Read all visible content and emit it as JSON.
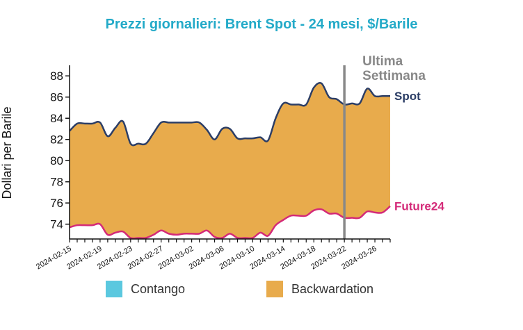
{
  "chart_data": {
    "type": "area",
    "title": "Prezzi giornalieri: Brent Spot - 24 mesi, $/Barile",
    "ylabel": "Dollari per Barile",
    "xlabel": "",
    "ylim": [
      72.6,
      89
    ],
    "yticks": [
      74,
      76,
      78,
      80,
      82,
      84,
      86,
      88
    ],
    "xtick_labels": [
      "2024-02-15",
      "2024-02-19",
      "2024-02-23",
      "2024-02-27",
      "2024-03-02",
      "2024-03-06",
      "2024-03-10",
      "2024-03-14",
      "2024-03-18",
      "2024-03-22",
      "2024-03-26"
    ],
    "x": [
      "2024-02-15",
      "2024-02-16",
      "2024-02-17",
      "2024-02-18",
      "2024-02-19",
      "2024-02-20",
      "2024-02-21",
      "2024-02-22",
      "2024-02-23",
      "2024-02-24",
      "2024-02-25",
      "2024-02-26",
      "2024-02-27",
      "2024-02-28",
      "2024-02-29",
      "2024-03-01",
      "2024-03-02",
      "2024-03-03",
      "2024-03-04",
      "2024-03-05",
      "2024-03-06",
      "2024-03-07",
      "2024-03-08",
      "2024-03-09",
      "2024-03-10",
      "2024-03-11",
      "2024-03-12",
      "2024-03-13",
      "2024-03-14",
      "2024-03-15",
      "2024-03-16",
      "2024-03-17",
      "2024-03-18",
      "2024-03-19",
      "2024-03-20",
      "2024-03-21",
      "2024-03-22",
      "2024-03-23",
      "2024-03-24",
      "2024-03-25",
      "2024-03-26",
      "2024-03-27",
      "2024-03-28"
    ],
    "series": [
      {
        "name": "Spot",
        "color": "#2c3e66",
        "values": [
          82.8,
          83.5,
          83.5,
          83.5,
          83.6,
          82.3,
          83.1,
          83.7,
          81.6,
          81.6,
          81.6,
          82.6,
          83.6,
          83.6,
          83.6,
          83.6,
          83.6,
          83.6,
          82.9,
          82.0,
          83.0,
          83.0,
          82.1,
          82.1,
          82.1,
          82.2,
          81.9,
          84.0,
          85.4,
          85.3,
          85.3,
          85.3,
          86.9,
          87.3,
          86.0,
          85.8,
          85.3,
          85.4,
          85.4,
          86.8,
          86.1,
          86.1,
          86.1
        ]
      },
      {
        "name": "Future24",
        "color": "#d42a78",
        "values": [
          73.7,
          73.9,
          73.9,
          73.9,
          74.0,
          73.0,
          73.2,
          73.3,
          72.7,
          72.7,
          72.7,
          73.0,
          73.4,
          73.1,
          73.0,
          73.1,
          73.1,
          73.1,
          73.4,
          72.8,
          72.7,
          73.1,
          72.7,
          72.7,
          72.7,
          73.2,
          72.9,
          73.9,
          74.4,
          74.8,
          74.8,
          74.8,
          75.3,
          75.4,
          75.0,
          75.0,
          74.6,
          74.6,
          74.6,
          75.2,
          75.1,
          75.1,
          75.7
        ]
      }
    ],
    "fill_between": {
      "backwardation_color": "#e8ab4c",
      "contango_color": "#5bc8df"
    },
    "marker": {
      "x": "2024-03-22",
      "label": [
        "Ultima",
        "Settimana"
      ],
      "color": "#888888"
    },
    "legend": [
      {
        "label": "Contango",
        "color": "#5bc8df"
      },
      {
        "label": "Backwardation",
        "color": "#e8ab4c"
      }
    ],
    "legend_placement": "bottom-center",
    "grid": false
  }
}
